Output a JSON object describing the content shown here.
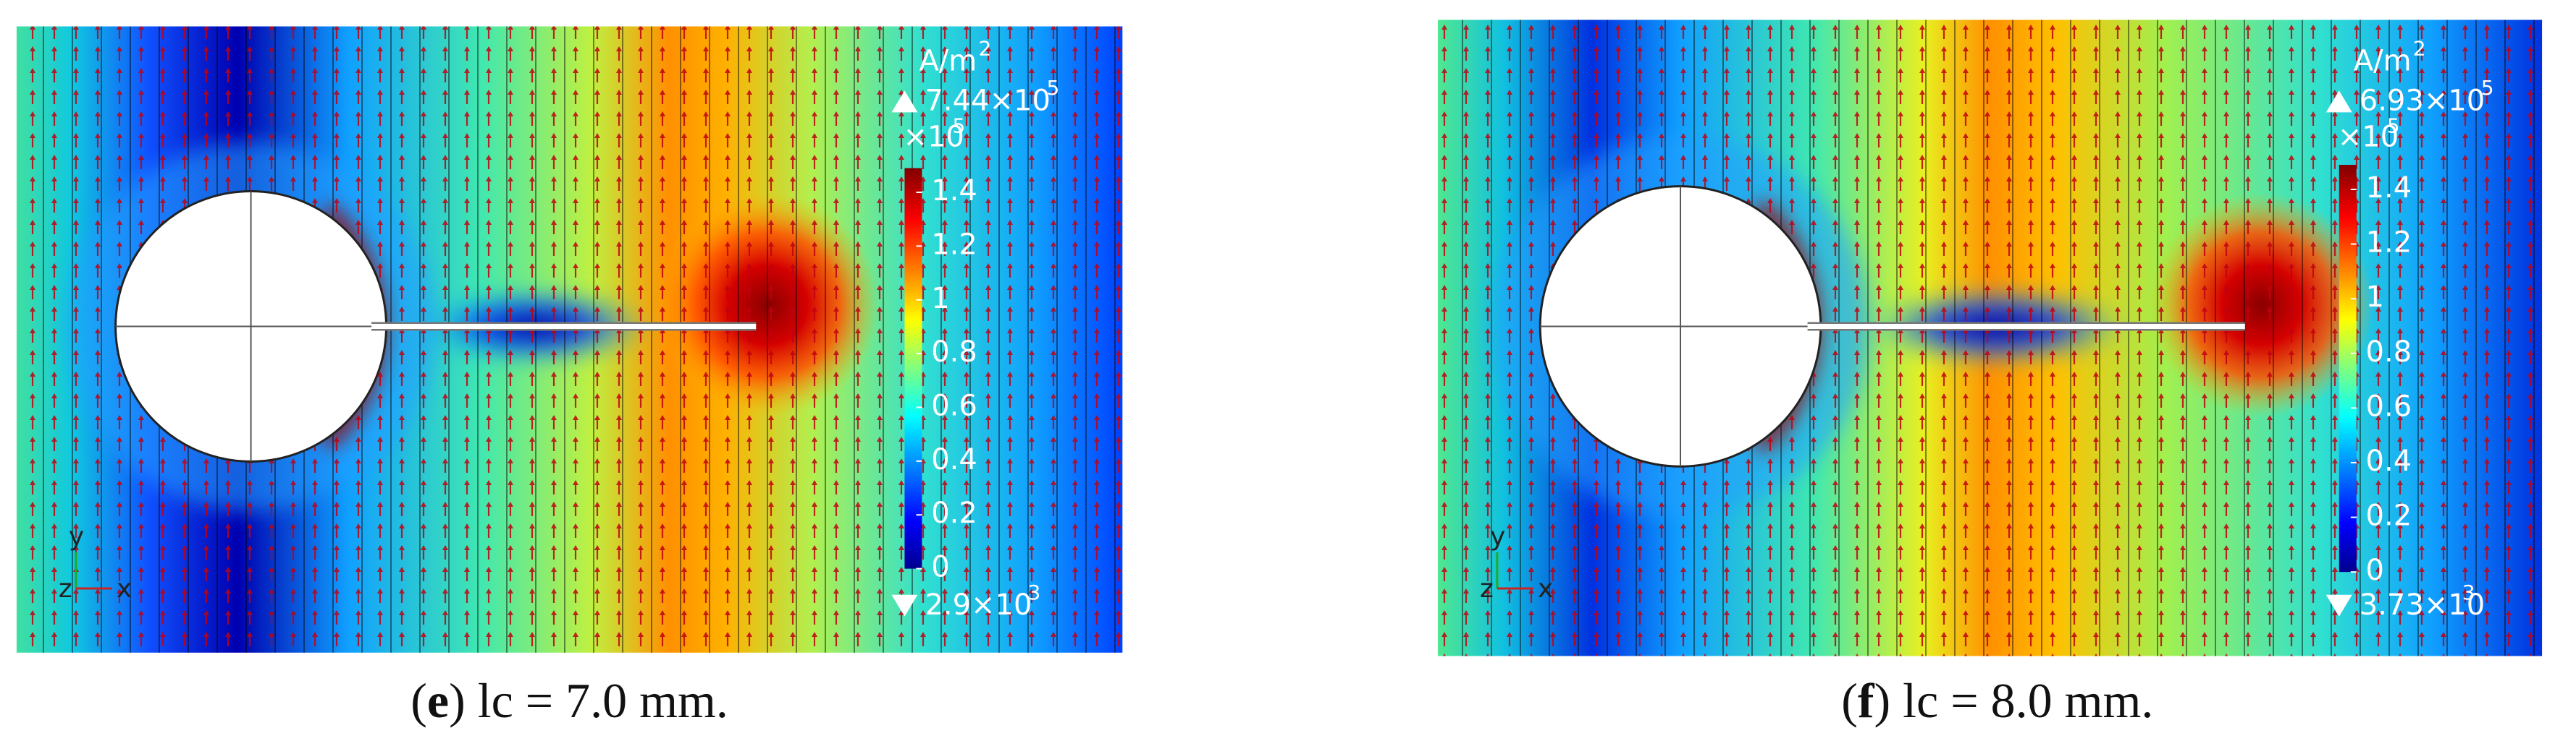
{
  "panels": [
    {
      "unit": "A/m",
      "unit_exp": "2",
      "max_label": "7.44×10",
      "max_exp": "5",
      "multiplier": "×10",
      "multiplier_exp": "5",
      "clim": [
        0,
        1.49
      ],
      "colorbar_ticks": [
        0,
        0.2,
        0.4,
        0.6,
        0.8,
        1,
        1.2,
        1.4
      ],
      "min_label": "2.9×10",
      "min_exp": "3",
      "axis_y": "y",
      "axis_z": "z",
      "axis_x": "x",
      "caption": [
        "(",
        "e",
        ") lc = 7.0 mm."
      ]
    },
    {
      "unit": "A/m",
      "unit_exp": "2",
      "max_label": "6.93×10",
      "max_exp": "5",
      "multiplier": "×10",
      "multiplier_exp": "5",
      "clim": [
        0,
        1.49
      ],
      "colorbar_ticks": [
        0,
        0.2,
        0.4,
        0.6,
        0.8,
        1,
        1.2,
        1.4
      ],
      "min_label": "3.73×10",
      "min_exp": "3",
      "axis_y": "y",
      "axis_z": "z",
      "axis_x": "x",
      "caption": [
        "(",
        "f",
        ") lc = 8.0 mm."
      ]
    }
  ]
}
